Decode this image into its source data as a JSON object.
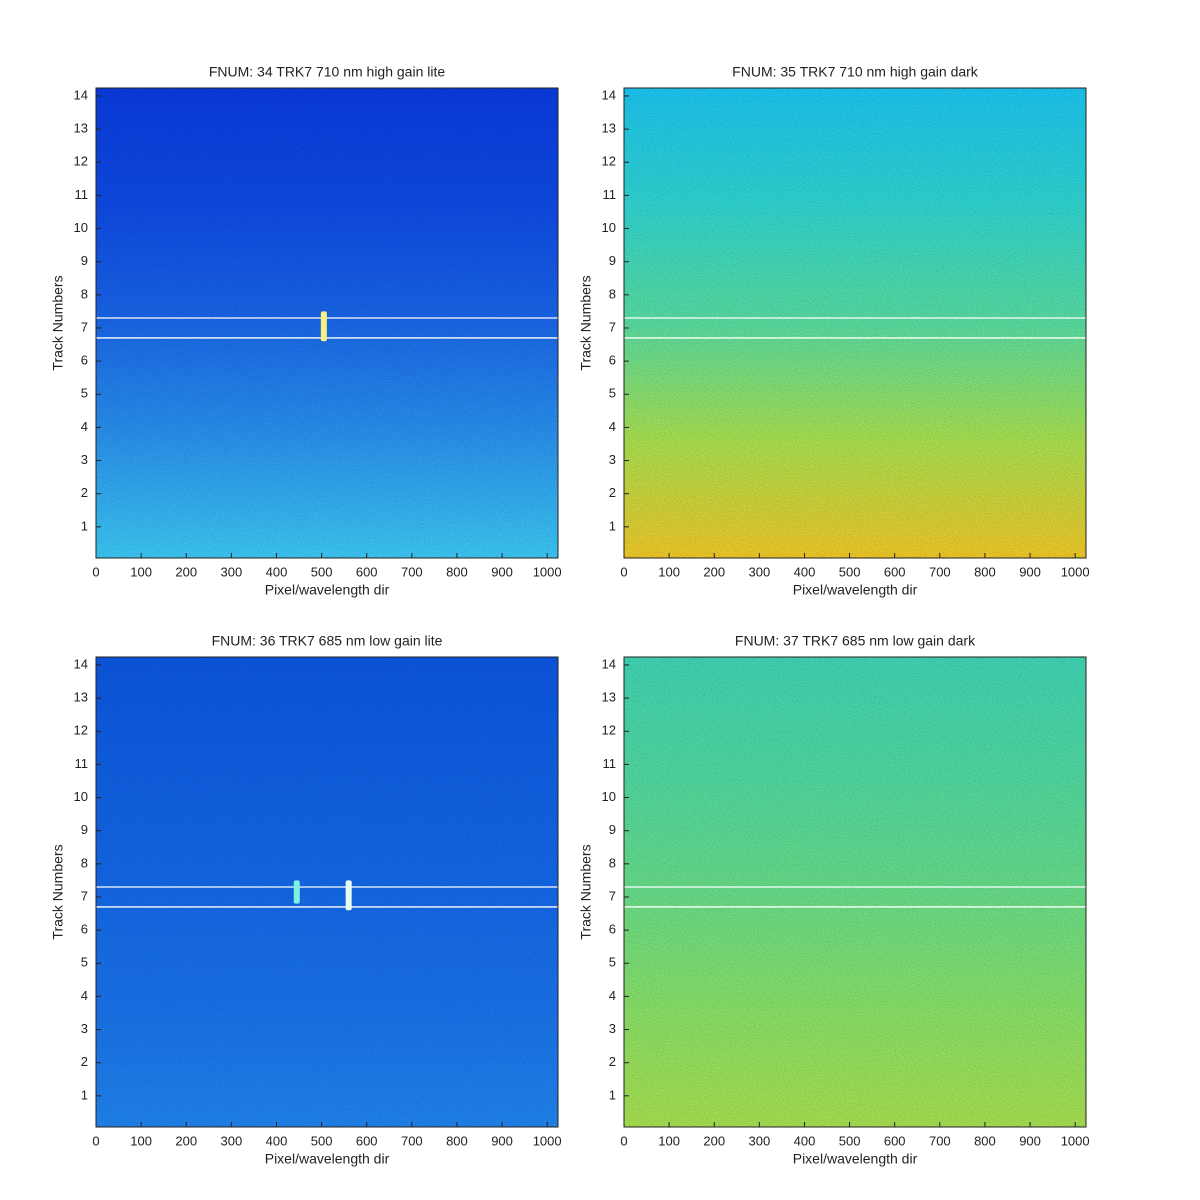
{
  "chart_data": [
    {
      "type": "heatmap",
      "title": "FNUM: 34 TRK7 710 nm high gain lite",
      "xlabel": "Pixel/wavelength dir",
      "ylabel": "Track Numbers",
      "xlim": [
        0,
        1024
      ],
      "ylim": [
        0.06,
        14.24
      ],
      "xticks": [
        0,
        100,
        200,
        300,
        400,
        500,
        600,
        700,
        800,
        900,
        1000
      ],
      "yticks": [
        1,
        2,
        3,
        4,
        5,
        6,
        7,
        8,
        9,
        10,
        11,
        12,
        13,
        14
      ],
      "gradient": [
        "#0a3ce0",
        "#0e4ae4",
        "#1a66e8",
        "#2a94ee",
        "#3cc8f4"
      ],
      "hlines": [
        7.3,
        6.7
      ],
      "hline_color": "#ffffff",
      "features": [
        {
          "x": 505,
          "y": [
            6.6,
            7.5
          ],
          "color": "#f8f080"
        }
      ]
    },
    {
      "type": "heatmap",
      "title": "FNUM: 35 TRK7 710 nm high gain dark",
      "xlabel": "Pixel/wavelength dir",
      "ylabel": "Track Numbers",
      "xlim": [
        0,
        1024
      ],
      "ylim": [
        0.06,
        14.24
      ],
      "xticks": [
        0,
        100,
        200,
        300,
        400,
        500,
        600,
        700,
        800,
        900,
        1000
      ],
      "yticks": [
        1,
        2,
        3,
        4,
        5,
        6,
        7,
        8,
        9,
        10,
        11,
        12,
        13,
        14
      ],
      "gradient": [
        "#1cc4f0",
        "#30d4d0",
        "#58dca0",
        "#a8e050",
        "#f0c828"
      ],
      "hlines": [
        7.3,
        6.7
      ],
      "hline_color": "#ffffff",
      "features": []
    },
    {
      "type": "heatmap",
      "title": "FNUM: 36 TRK7 685 nm low gain lite",
      "xlabel": "Pixel/wavelength dir",
      "ylabel": "Track Numbers",
      "xlim": [
        0,
        1024
      ],
      "ylim": [
        0.06,
        14.24
      ],
      "xticks": [
        0,
        100,
        200,
        300,
        400,
        500,
        600,
        700,
        800,
        900,
        1000
      ],
      "yticks": [
        1,
        2,
        3,
        4,
        5,
        6,
        7,
        8,
        9,
        10,
        11,
        12,
        13,
        14
      ],
      "gradient": [
        "#0c56e0",
        "#1060e4",
        "#1468e8",
        "#1a72ea",
        "#2084ee"
      ],
      "hlines": [
        7.3,
        6.7
      ],
      "hline_color": "#ffffff",
      "features": [
        {
          "x": 445,
          "y": [
            6.8,
            7.5
          ],
          "color": "#80f0e0"
        },
        {
          "x": 560,
          "y": [
            6.6,
            7.5
          ],
          "color": "#e8fff0"
        }
      ]
    },
    {
      "type": "heatmap",
      "title": "FNUM: 37 TRK7 685 nm low gain dark",
      "xlabel": "Pixel/wavelength dir",
      "ylabel": "Track Numbers",
      "xlim": [
        0,
        1024
      ],
      "ylim": [
        0.06,
        14.24
      ],
      "xticks": [
        0,
        100,
        200,
        300,
        400,
        500,
        600,
        700,
        800,
        900,
        1000
      ],
      "yticks": [
        1,
        2,
        3,
        4,
        5,
        6,
        7,
        8,
        9,
        10,
        11,
        12,
        13,
        14
      ],
      "gradient": [
        "#40d4b4",
        "#50d8a0",
        "#68dc88",
        "#88e068",
        "#a8e050"
      ],
      "hlines": [
        7.3,
        6.7
      ],
      "hline_color": "#ffffff",
      "features": []
    }
  ]
}
